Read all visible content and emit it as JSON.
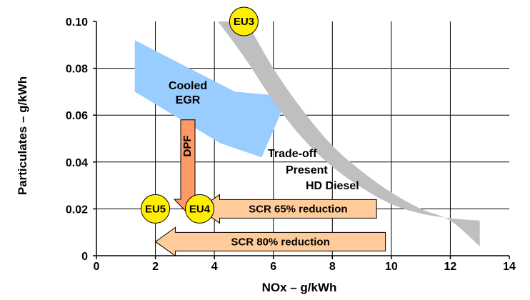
{
  "chart_data": {
    "type": "scatter",
    "xlabel": "NOx  –  g/kWh",
    "ylabel": "Particulates  –  g/kWh",
    "xlim": [
      0,
      14
    ],
    "ylim": [
      0,
      0.1
    ],
    "grid": true,
    "x_ticks": [
      "0",
      "2",
      "4",
      "6",
      "8",
      "10",
      "12",
      "14"
    ],
    "y_ticks": [
      "0",
      "0.02",
      "0.04",
      "0.06",
      "0.08",
      "0.10"
    ],
    "regions": [
      {
        "name": "Cooled EGR",
        "label_lines": [
          "Cooled",
          "EGR"
        ],
        "color": "#99ccff",
        "upper": [
          [
            1.3,
            0.092
          ],
          [
            4.7,
            0.07
          ],
          [
            6.5,
            0.068
          ]
        ],
        "lower": [
          [
            1.3,
            0.07
          ],
          [
            4.2,
            0.048
          ],
          [
            5.6,
            0.042
          ]
        ]
      },
      {
        "name": "Trade-off Present HD Diesel",
        "label_lines": [
          "Trade-off",
          "Present",
          "HD Diesel"
        ],
        "color": "#bfbfbf",
        "inner": [
          [
            4.0,
            0.102
          ],
          [
            5.0,
            0.085
          ],
          [
            6.0,
            0.066
          ],
          [
            7.0,
            0.05
          ],
          [
            8.0,
            0.038
          ],
          [
            9.0,
            0.029
          ],
          [
            10.0,
            0.022
          ],
          [
            11.0,
            0.018
          ],
          [
            12.0,
            0.016
          ],
          [
            13.0,
            0.015
          ]
        ],
        "outer": [
          [
            5.0,
            0.102
          ],
          [
            6.0,
            0.08
          ],
          [
            7.0,
            0.062
          ],
          [
            8.0,
            0.047
          ],
          [
            9.0,
            0.036
          ],
          [
            10.0,
            0.027
          ],
          [
            11.0,
            0.02
          ],
          [
            12.0,
            0.015
          ],
          [
            13.0,
            0.004
          ]
        ]
      }
    ],
    "points": [
      {
        "label": "EU3",
        "x": 5.0,
        "y": 0.1,
        "color": "#ffee00"
      },
      {
        "label": "EU4",
        "x": 3.5,
        "y": 0.02,
        "color": "#ffee00"
      },
      {
        "label": "EU5",
        "x": 2.0,
        "y": 0.02,
        "color": "#ffee00"
      }
    ],
    "arrows": [
      {
        "label": "DPF",
        "from": [
          3.1,
          0.058
        ],
        "to": [
          3.1,
          0.018
        ],
        "color": "#ff9966",
        "orientation": "vertical"
      },
      {
        "label": "SCR 65% reduction",
        "from": [
          9.5,
          0.02
        ],
        "to": [
          3.5,
          0.02
        ],
        "color": "#ffcc99",
        "orientation": "horizontal"
      },
      {
        "label": "SCR 80% reduction",
        "from": [
          9.8,
          0.006
        ],
        "to": [
          2.0,
          0.006
        ],
        "color": "#ffcc99",
        "orientation": "horizontal"
      }
    ]
  }
}
